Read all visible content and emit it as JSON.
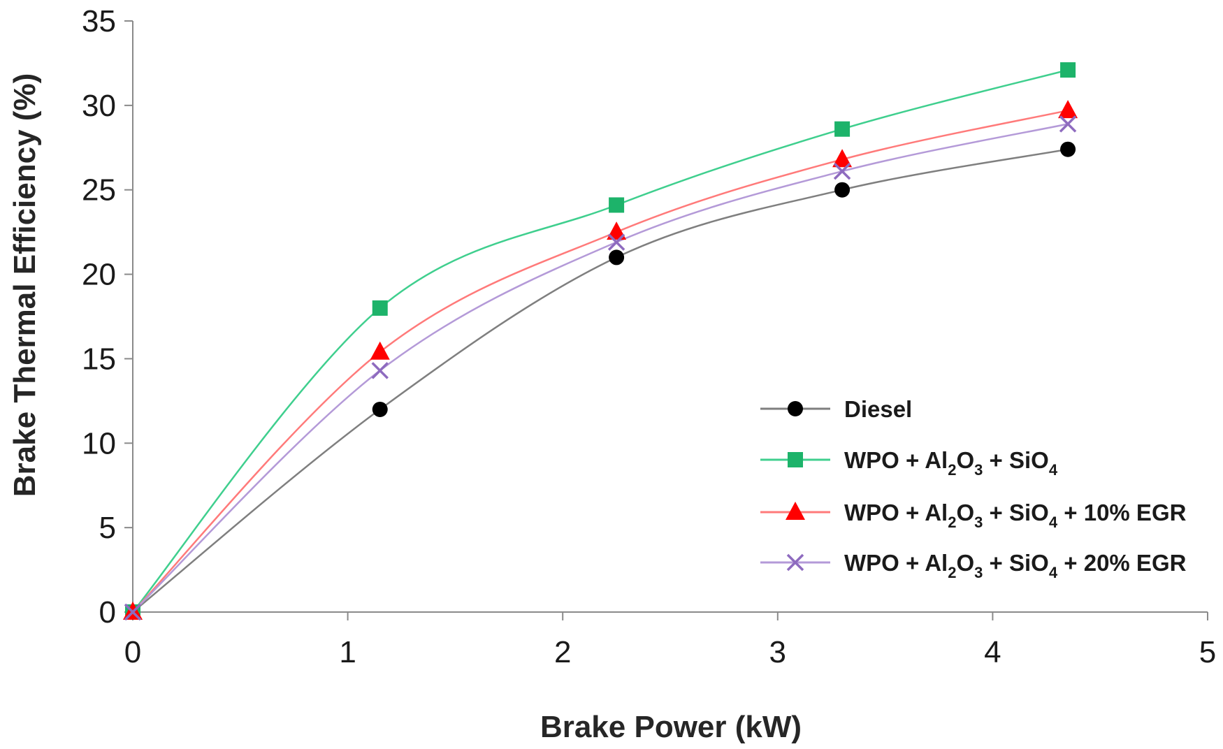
{
  "chart_data": {
    "type": "line",
    "title": "",
    "xlabel": "Brake Power (kW)",
    "ylabel": "Brake Thermal Efficiency (%)",
    "xlim": [
      0,
      5
    ],
    "ylim": [
      0,
      35
    ],
    "xticks": [
      "0",
      "1",
      "2",
      "3",
      "4",
      "5"
    ],
    "yticks": [
      "0",
      "5",
      "10",
      "15",
      "20",
      "25",
      "30",
      "35"
    ],
    "grid": false,
    "legend_position": "bottom-right",
    "x": [
      0,
      1.15,
      2.25,
      3.3,
      4.35
    ],
    "series": [
      {
        "name": "Diesel",
        "marker": "circle",
        "color": "#000000",
        "line_color": "#7f7f7f",
        "values": [
          0,
          12.0,
          21.0,
          25.0,
          27.4
        ],
        "legend_parts": [
          {
            "t": "Diesel",
            "sub": false
          }
        ]
      },
      {
        "name": "WPO + Al2O3 + SiO4",
        "marker": "square",
        "color": "#1db36a",
        "line_color": "#3fcf8e",
        "values": [
          0,
          18.0,
          24.1,
          28.6,
          32.1
        ],
        "legend_parts": [
          {
            "t": "WPO + Al",
            "sub": false
          },
          {
            "t": "2",
            "sub": true
          },
          {
            "t": "O",
            "sub": false
          },
          {
            "t": "3",
            "sub": true
          },
          {
            "t": " + SiO",
            "sub": false
          },
          {
            "t": "4",
            "sub": true
          }
        ]
      },
      {
        "name": "WPO + Al2O3 + SiO4 + 10% EGR",
        "marker": "triangle",
        "color": "#ff0000",
        "line_color": "#ff7a7a",
        "values": [
          0,
          15.4,
          22.5,
          26.8,
          29.7
        ],
        "legend_parts": [
          {
            "t": "WPO + Al",
            "sub": false
          },
          {
            "t": "2",
            "sub": true
          },
          {
            "t": "O",
            "sub": false
          },
          {
            "t": "3",
            "sub": true
          },
          {
            "t": " + SiO",
            "sub": false
          },
          {
            "t": "4",
            "sub": true
          },
          {
            "t": " + 10% EGR",
            "sub": false
          }
        ]
      },
      {
        "name": "WPO + Al2O3 + SiO4 + 20% EGR",
        "marker": "x",
        "color": "#8e6bbf",
        "line_color": "#b49ad8",
        "values": [
          0,
          14.3,
          21.9,
          26.1,
          28.9
        ],
        "legend_parts": [
          {
            "t": "WPO + Al",
            "sub": false
          },
          {
            "t": "2",
            "sub": true
          },
          {
            "t": "O",
            "sub": false
          },
          {
            "t": "3",
            "sub": true
          },
          {
            "t": " + SiO",
            "sub": false
          },
          {
            "t": "4",
            "sub": true
          },
          {
            "t": " + 20% EGR",
            "sub": false
          }
        ]
      }
    ]
  }
}
